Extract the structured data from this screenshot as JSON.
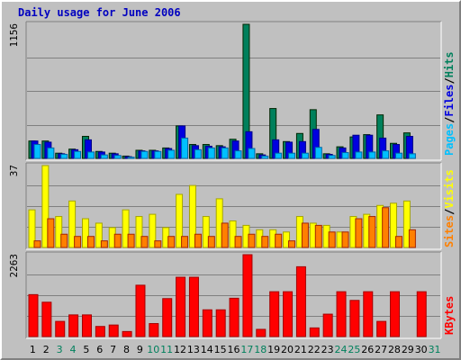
{
  "title": "Daily usage for June 2006",
  "colors": {
    "hits": "#00805c",
    "files": "#0000e0",
    "pages": "#00c0ff",
    "visits": "#ffff00",
    "sites": "#ff8000",
    "kbytes": "#ff0000",
    "weekend_day": "#00805c",
    "weekday": "#000000"
  },
  "legend": {
    "top": [
      {
        "key": "pages",
        "text": "Pages"
      },
      {
        "key": "sep",
        "text": "/"
      },
      {
        "key": "files",
        "text": "Files"
      },
      {
        "key": "sep",
        "text": "/"
      },
      {
        "key": "hits",
        "text": "Hits"
      }
    ],
    "mid": [
      {
        "key": "sites",
        "text": "Sites"
      },
      {
        "key": "sep",
        "text": "/"
      },
      {
        "key": "visits",
        "text": "Visits"
      }
    ],
    "bot": [
      {
        "key": "kbytes",
        "text": "KBytes"
      }
    ]
  },
  "chart_data": {
    "type": "bar",
    "title": "Daily usage for June 2006",
    "x": [
      "1",
      "2",
      "3",
      "4",
      "5",
      "6",
      "7",
      "8",
      "9",
      "10",
      "11",
      "12",
      "13",
      "14",
      "15",
      "16",
      "17",
      "18",
      "19",
      "20",
      "21",
      "22",
      "23",
      "24",
      "25",
      "26",
      "27",
      "28",
      "29",
      "30",
      "31"
    ],
    "weekend_days": [
      "3",
      "4",
      "10",
      "11",
      "17",
      "18",
      "24",
      "25",
      "31"
    ],
    "panels": [
      {
        "id": "top",
        "ymax_label": "1156",
        "ylim": [
          0,
          1156
        ],
        "series": [
          {
            "name": "Hits",
            "color_key": "hits",
            "values": [
              150,
              150,
              45,
              80,
              190,
              60,
              45,
              20,
              70,
              70,
              90,
              280,
              120,
              120,
              110,
              165,
              1156,
              40,
              430,
              145,
              215,
              420,
              40,
              100,
              185,
              205,
              375,
              130,
              220,
              0
            ]
          },
          {
            "name": "Files",
            "color_key": "files",
            "values": [
              150,
              140,
              40,
              75,
              160,
              55,
              40,
              15,
              65,
              65,
              85,
              280,
              110,
              105,
              100,
              150,
              230,
              30,
              160,
              140,
              145,
              250,
              35,
              90,
              200,
              200,
              175,
              120,
              190,
              0
            ]
          },
          {
            "name": "Pages",
            "color_key": "pages",
            "values": [
              120,
              90,
              35,
              60,
              55,
              30,
              25,
              10,
              60,
              60,
              70,
              175,
              75,
              90,
              90,
              65,
              85,
              20,
              45,
              45,
              45,
              95,
              25,
              50,
              55,
              55,
              65,
              45,
              40,
              0
            ]
          }
        ]
      },
      {
        "id": "mid",
        "ymax_label": "37",
        "ylim": [
          0,
          37
        ],
        "series": [
          {
            "name": "Visits",
            "color_key": "visits",
            "values": [
              17,
              37,
              14,
              21,
              13,
              11,
              9,
              17,
              14,
              15,
              9,
              24,
              28,
              14,
              22,
              12,
              10,
              8,
              8,
              7,
              14,
              11,
              10,
              7,
              14,
              15,
              19,
              20,
              21,
              0
            ]
          },
          {
            "name": "Sites",
            "color_key": "sites",
            "values": [
              3,
              13,
              6,
              5,
              5,
              3,
              6,
              6,
              5,
              3,
              5,
              5,
              6,
              5,
              11,
              5,
              6,
              5,
              6,
              3,
              11,
              10,
              7,
              7,
              13,
              14,
              18,
              5,
              8,
              0
            ]
          }
        ]
      },
      {
        "id": "bot",
        "ymax_label": "2263",
        "ylim": [
          0,
          2263
        ],
        "series": [
          {
            "name": "KBytes",
            "color_key": "kbytes",
            "values": [
              1160,
              950,
              420,
              600,
              600,
              280,
              320,
              140,
              1420,
              360,
              1050,
              1640,
              1640,
              740,
              740,
              1060,
              2263,
              200,
              1240,
              1240,
              1930,
              240,
              620,
              1240,
              1000,
              1240,
              420,
              1240,
              0,
              1240
            ]
          }
        ]
      }
    ]
  }
}
